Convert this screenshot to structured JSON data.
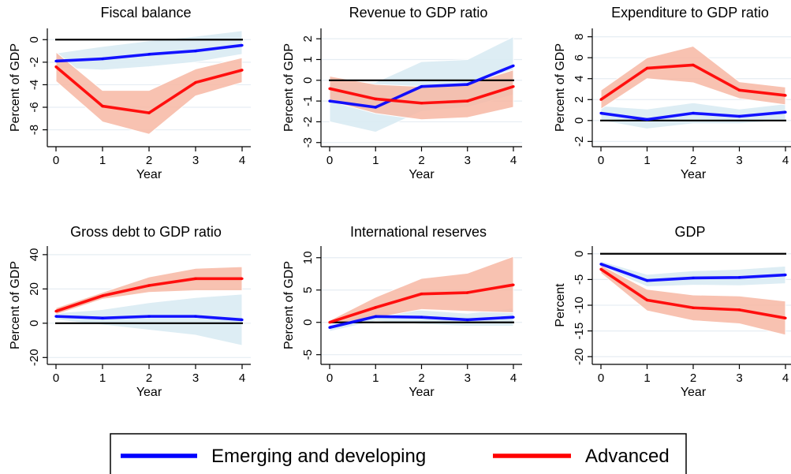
{
  "colors": {
    "emerging": "#0000ff",
    "advanced": "#ff0000",
    "emerging_band": "#d9ebf3",
    "advanced_band": "#f7b7a3",
    "zero_line": "#000000",
    "grid": "#e6edf3"
  },
  "legend": {
    "position": "bottom-center",
    "items": [
      {
        "label": "Emerging and developing",
        "series": "emerging"
      },
      {
        "label": "Advanced",
        "series": "advanced"
      }
    ]
  },
  "chart_data": [
    {
      "type": "line",
      "title": "Fiscal balance",
      "xlabel": "Year",
      "ylabel": "Percent of GDP",
      "x": [
        0,
        1,
        2,
        3,
        4
      ],
      "xticks": [
        "0",
        "1",
        "2",
        "3",
        "4"
      ],
      "yticks": [
        -8,
        -6,
        -4,
        -2,
        0
      ],
      "ylim": [
        -9.5,
        1.0
      ],
      "grid": true,
      "series": [
        {
          "name": "Emerging and developing",
          "key": "emerging",
          "values": [
            -1.9,
            -1.7,
            -1.3,
            -1.0,
            -0.5
          ],
          "lower": [
            -2.5,
            -2.7,
            -2.4,
            -2.0,
            -1.3
          ],
          "upper": [
            -1.2,
            -0.6,
            -0.1,
            0.3,
            0.8
          ]
        },
        {
          "name": "Advanced",
          "key": "advanced",
          "values": [
            -2.4,
            -5.9,
            -6.5,
            -3.8,
            -2.7
          ],
          "lower": [
            -3.7,
            -7.3,
            -8.4,
            -5.0,
            -3.8
          ],
          "upper": [
            -1.1,
            -4.5,
            -4.5,
            -2.6,
            -1.6
          ]
        }
      ]
    },
    {
      "type": "line",
      "title": "Revenue to GDP ratio",
      "xlabel": "Year",
      "ylabel": "Percent of GDP",
      "x": [
        0,
        1,
        2,
        3,
        4
      ],
      "xticks": [
        "0",
        "1",
        "2",
        "3",
        "4"
      ],
      "yticks": [
        -3,
        -2,
        -1,
        0,
        1,
        2
      ],
      "ylim": [
        -3.2,
        2.5
      ],
      "grid": true,
      "series": [
        {
          "name": "Emerging and developing",
          "key": "emerging",
          "values": [
            -1.0,
            -1.3,
            -0.3,
            -0.2,
            0.7
          ],
          "lower": [
            -2.0,
            -2.5,
            -1.5,
            -1.3,
            -0.7
          ],
          "upper": [
            -0.1,
            -0.1,
            0.9,
            1.0,
            2.1
          ]
        },
        {
          "name": "Advanced",
          "key": "advanced",
          "values": [
            -0.4,
            -0.9,
            -1.1,
            -1.0,
            -0.3
          ],
          "lower": [
            -1.0,
            -1.6,
            -1.9,
            -1.8,
            -1.3
          ],
          "upper": [
            0.2,
            -0.2,
            -0.3,
            -0.2,
            0.5
          ]
        }
      ]
    },
    {
      "type": "line",
      "title": "Expenditure to GDP ratio",
      "xlabel": "Year",
      "ylabel": "Percent of GDP",
      "x": [
        0,
        1,
        2,
        3,
        4
      ],
      "xticks": [
        "0",
        "1",
        "2",
        "3",
        "4"
      ],
      "yticks": [
        -2,
        0,
        2,
        4,
        6,
        8
      ],
      "ylim": [
        -2.5,
        8.8
      ],
      "grid": true,
      "series": [
        {
          "name": "Emerging and developing",
          "key": "emerging",
          "values": [
            0.7,
            0.1,
            0.7,
            0.4,
            0.8
          ],
          "lower": [
            0.0,
            -0.8,
            -0.3,
            -0.3,
            0.0
          ],
          "upper": [
            1.4,
            1.1,
            1.7,
            1.1,
            1.6
          ]
        },
        {
          "name": "Advanced",
          "key": "advanced",
          "values": [
            2.0,
            5.0,
            5.3,
            2.9,
            2.4
          ],
          "lower": [
            1.1,
            4.0,
            3.6,
            2.1,
            1.5
          ],
          "upper": [
            2.9,
            6.0,
            7.1,
            3.7,
            3.2
          ]
        }
      ]
    },
    {
      "type": "line",
      "title": "Gross debt to GDP ratio",
      "xlabel": "Year",
      "ylabel": "Percent of GDP",
      "x": [
        0,
        1,
        2,
        3,
        4
      ],
      "xticks": [
        "0",
        "1",
        "2",
        "3",
        "4"
      ],
      "yticks": [
        -20,
        0,
        20,
        40
      ],
      "ylim": [
        -24,
        45
      ],
      "grid": true,
      "series": [
        {
          "name": "Emerging and developing",
          "key": "emerging",
          "values": [
            4,
            3,
            4,
            4,
            2
          ],
          "lower": [
            2,
            -1,
            -4,
            -7,
            -13
          ],
          "upper": [
            6,
            8,
            12,
            15,
            17
          ]
        },
        {
          "name": "Advanced",
          "key": "advanced",
          "values": [
            7,
            16,
            22,
            26,
            26
          ],
          "lower": [
            5,
            14,
            18,
            19,
            19
          ],
          "upper": [
            9,
            18,
            27,
            32,
            33
          ]
        }
      ]
    },
    {
      "type": "line",
      "title": "International reserves",
      "xlabel": "Year",
      "ylabel": "Percent of GDP",
      "x": [
        0,
        1,
        2,
        3,
        4
      ],
      "xticks": [
        "0",
        "1",
        "2",
        "3",
        "4"
      ],
      "yticks": [
        -5,
        0,
        5,
        10
      ],
      "ylim": [
        -6.5,
        11.8
      ],
      "grid": true,
      "series": [
        {
          "name": "Emerging and developing",
          "key": "emerging",
          "values": [
            -0.8,
            0.9,
            0.8,
            0.4,
            0.8
          ],
          "lower": [
            -1.4,
            0.2,
            -0.3,
            -0.6,
            -0.6
          ],
          "upper": [
            -0.2,
            1.6,
            1.9,
            1.4,
            2.2
          ]
        },
        {
          "name": "Advanced",
          "key": "advanced",
          "values": [
            0.0,
            2.3,
            4.4,
            4.6,
            5.8
          ],
          "lower": [
            -0.3,
            0.7,
            2.0,
            1.7,
            1.5
          ],
          "upper": [
            0.3,
            3.9,
            6.8,
            7.6,
            10.2
          ]
        }
      ]
    },
    {
      "type": "line",
      "title": "GDP",
      "xlabel": "Year",
      "ylabel": "Percent",
      "x": [
        0,
        1,
        2,
        3,
        4
      ],
      "xticks": [
        "0",
        "1",
        "2",
        "3",
        "4"
      ],
      "yticks": [
        -20,
        -15,
        -10,
        -5,
        0
      ],
      "ylim": [
        -21.5,
        1.5
      ],
      "grid": true,
      "series": [
        {
          "name": "Emerging and developing",
          "key": "emerging",
          "values": [
            -2.0,
            -5.2,
            -4.7,
            -4.6,
            -4.1
          ],
          "lower": [
            -2.6,
            -6.4,
            -6.1,
            -6.2,
            -5.8
          ],
          "upper": [
            -1.4,
            -4.0,
            -3.3,
            -3.0,
            -2.4
          ]
        },
        {
          "name": "Advanced",
          "key": "advanced",
          "values": [
            -3.0,
            -9.0,
            -10.5,
            -10.9,
            -12.5
          ],
          "lower": [
            -3.8,
            -11.1,
            -13.0,
            -13.6,
            -15.8
          ],
          "upper": [
            -2.2,
            -6.9,
            -8.0,
            -8.2,
            -9.2
          ]
        }
      ]
    }
  ]
}
